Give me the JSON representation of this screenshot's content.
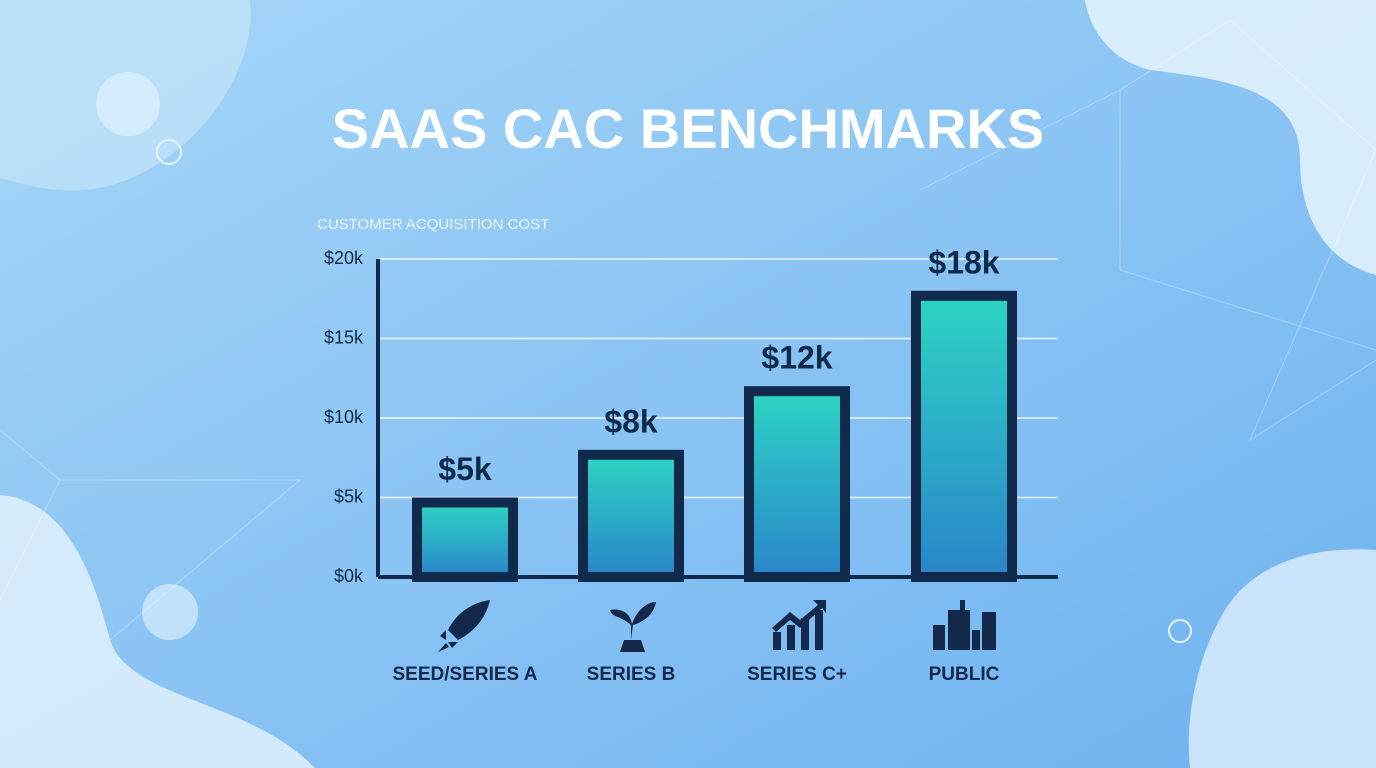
{
  "chart_data": {
    "type": "bar",
    "title": "SAAS CAC BENCHMARKS",
    "y_label": "CUSTOMER ACQUISITION COST",
    "categories": [
      "SEED/SERIES A",
      "SERIES B",
      "SERIES C+",
      "PUBLIC"
    ],
    "values": [
      5,
      8,
      12,
      18
    ],
    "value_labels": [
      "$5k",
      "$8k",
      "$12k",
      "$18k"
    ],
    "color": "#0f2a4a",
    "ylim": [
      0,
      20
    ],
    "yticks": [
      {
        "value": 0,
        "label": "$0k"
      },
      {
        "value": 5,
        "label": "$5k"
      },
      {
        "value": 10,
        "label": "$10k"
      },
      {
        "value": 15,
        "label": "$15k"
      },
      {
        "value": 20,
        "label": "$20k"
      }
    ],
    "grid": true
  }
}
